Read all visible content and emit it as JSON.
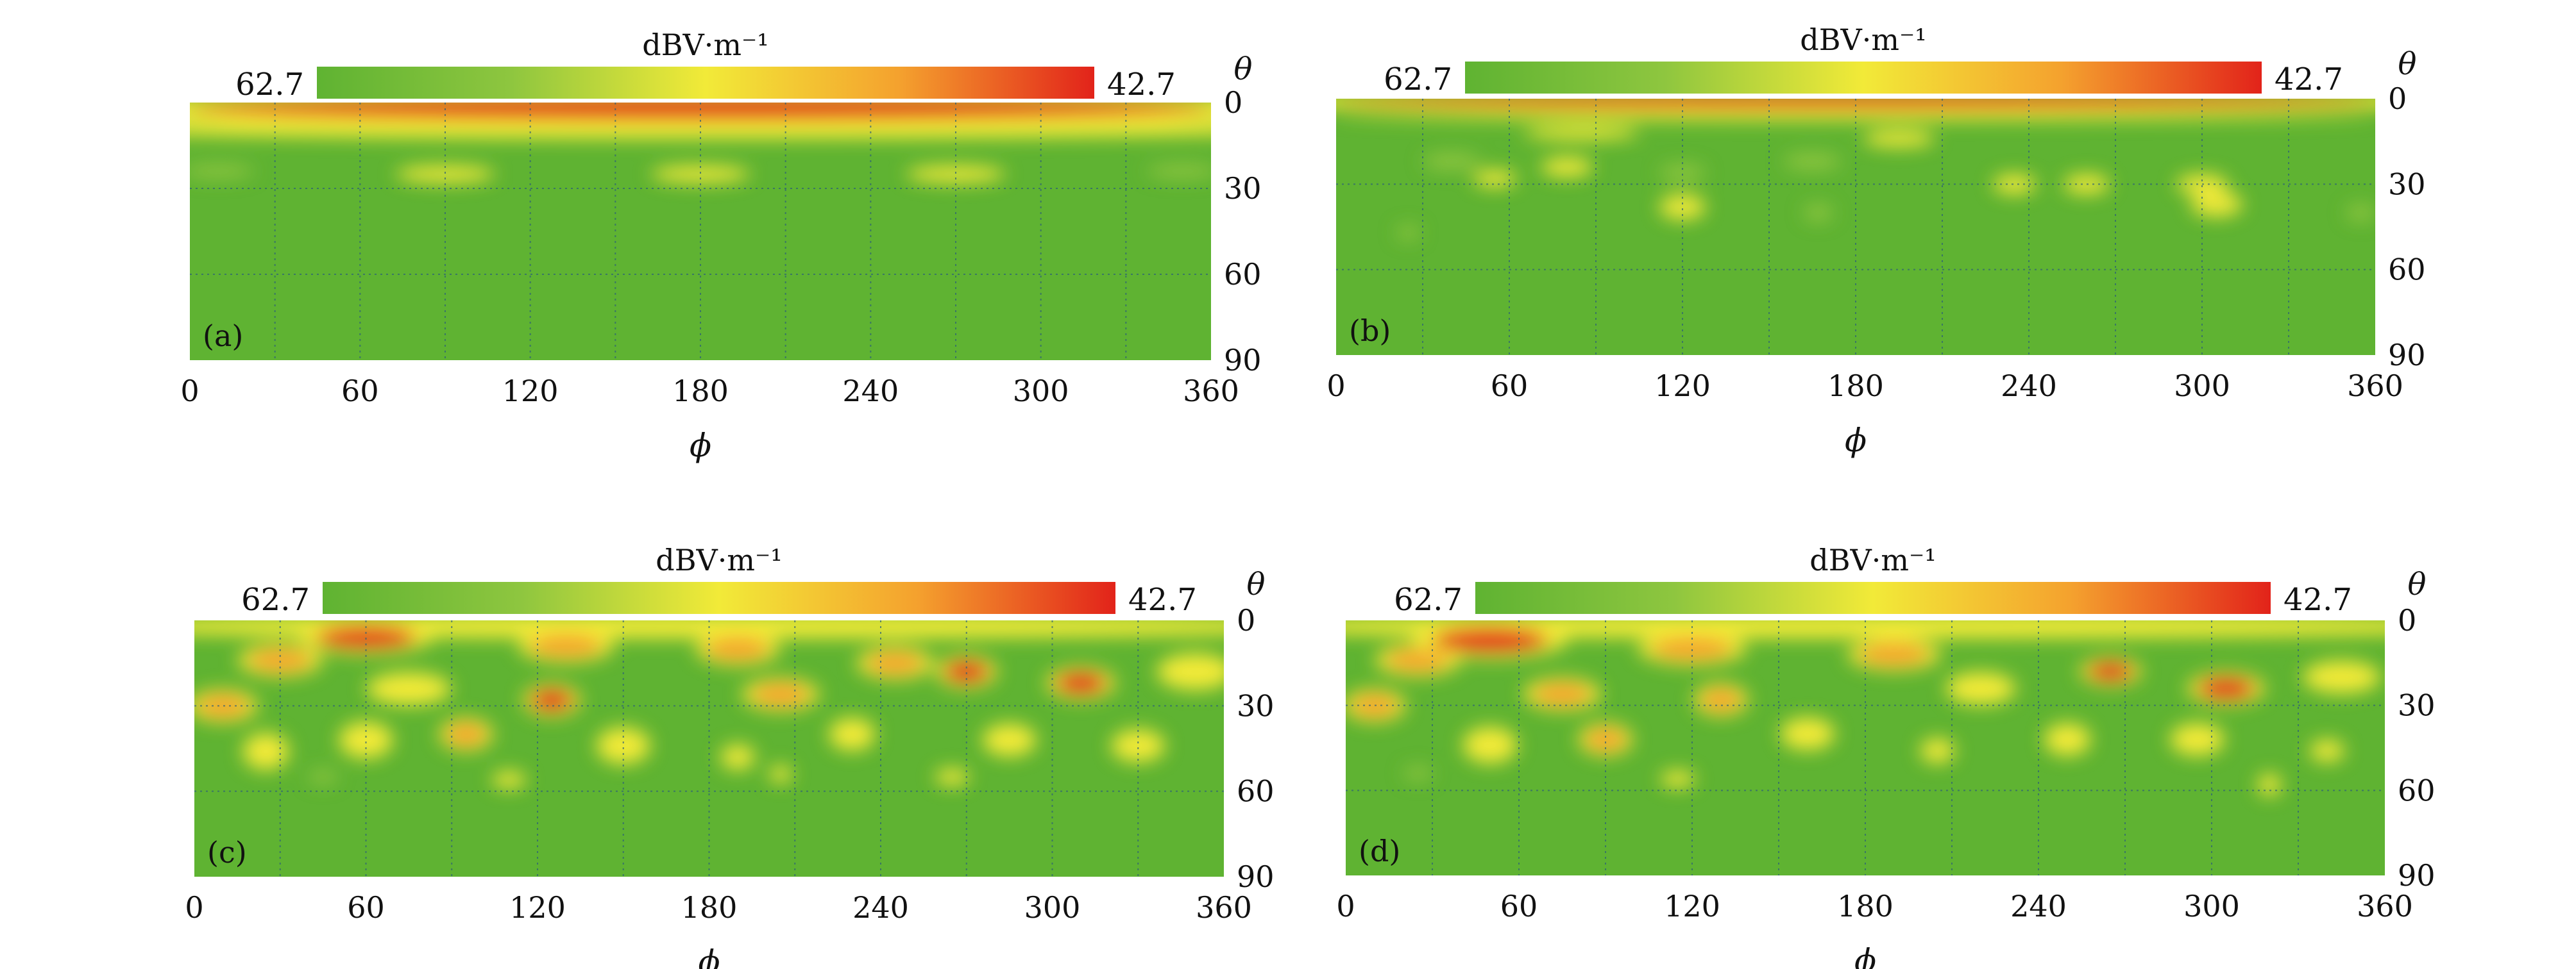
{
  "figure": {
    "panels": [
      {
        "id": "a",
        "panel_label": "(a)",
        "colorbar": {
          "unit": "dBV·m⁻¹",
          "left_value": "62.7",
          "right_value": "42.7"
        },
        "xlabel": "ϕ",
        "ylabel": "θ"
      },
      {
        "id": "b",
        "panel_label": "(b)",
        "colorbar": {
          "unit": "dBV·m⁻¹",
          "left_value": "62.7",
          "right_value": "42.7"
        },
        "xlabel": "ϕ",
        "ylabel": "θ"
      },
      {
        "id": "c",
        "panel_label": "(c)",
        "colorbar": {
          "unit": "dBV·m⁻¹",
          "left_value": "62.7",
          "right_value": "42.7"
        },
        "xlabel": "ϕ",
        "ylabel": "θ"
      },
      {
        "id": "d",
        "panel_label": "(d)",
        "colorbar": {
          "unit": "dBV·m⁻¹",
          "left_value": "62.7",
          "right_value": "42.7"
        },
        "xlabel": "ϕ",
        "ylabel": "θ"
      }
    ]
  },
  "chart_data": [
    {
      "type": "heatmap",
      "panel": "a",
      "x_ticks": [
        0,
        60,
        120,
        180,
        240,
        300,
        360
      ],
      "y_ticks": [
        0,
        30,
        60,
        90
      ],
      "xlim": [
        0,
        360
      ],
      "ylim": [
        0,
        90
      ],
      "y_inverted": true,
      "grid": "dotted",
      "colormap": [
        "#5fb332",
        "#8ec63f",
        "#f2ea38",
        "#f4a12e",
        "#e2231a"
      ],
      "value_range": [
        42.7,
        62.7
      ],
      "hotspots": [
        {
          "phi": 180,
          "theta": 2,
          "size_phi": 360,
          "size_theta": 8,
          "level": 1.0
        },
        {
          "phi": 180,
          "theta": 9,
          "size_phi": 360,
          "size_theta": 5,
          "level": 0.55
        },
        {
          "phi": 90,
          "theta": 25,
          "size_phi": 35,
          "size_theta": 6,
          "level": 0.42
        },
        {
          "phi": 180,
          "theta": 25,
          "size_phi": 35,
          "size_theta": 6,
          "level": 0.42
        },
        {
          "phi": 270,
          "theta": 25,
          "size_phi": 35,
          "size_theta": 6,
          "level": 0.42
        },
        {
          "phi": 10,
          "theta": 24,
          "size_phi": 25,
          "size_theta": 5,
          "level": 0.3
        },
        {
          "phi": 350,
          "theta": 24,
          "size_phi": 25,
          "size_theta": 5,
          "level": 0.3
        }
      ]
    },
    {
      "type": "heatmap",
      "panel": "b",
      "x_ticks": [
        0,
        60,
        120,
        180,
        240,
        300,
        360
      ],
      "y_ticks": [
        0,
        30,
        60,
        90
      ],
      "xlim": [
        0,
        360
      ],
      "ylim": [
        0,
        90
      ],
      "y_inverted": true,
      "grid": "dotted",
      "colormap": [
        "#5fb332",
        "#8ec63f",
        "#f2ea38",
        "#f4a12e",
        "#e2231a"
      ],
      "value_range": [
        42.7,
        62.7
      ],
      "hotspots": [
        {
          "phi": 180,
          "theta": 1,
          "size_phi": 360,
          "size_theta": 5,
          "level": 1.0
        },
        {
          "phi": 180,
          "theta": 6,
          "size_phi": 360,
          "size_theta": 3,
          "level": 0.5
        },
        {
          "phi": 85,
          "theta": 12,
          "size_phi": 40,
          "size_theta": 5,
          "level": 0.45
        },
        {
          "phi": 195,
          "theta": 14,
          "size_phi": 25,
          "size_theta": 6,
          "level": 0.45
        },
        {
          "phi": 40,
          "theta": 22,
          "size_phi": 20,
          "size_theta": 6,
          "level": 0.35
        },
        {
          "phi": 80,
          "theta": 24,
          "size_phi": 18,
          "size_theta": 7,
          "level": 0.45
        },
        {
          "phi": 120,
          "theta": 26,
          "size_phi": 16,
          "size_theta": 6,
          "level": 0.35
        },
        {
          "phi": 165,
          "theta": 22,
          "size_phi": 20,
          "size_theta": 6,
          "level": 0.3
        },
        {
          "phi": 55,
          "theta": 28,
          "size_phi": 15,
          "size_theta": 6,
          "level": 0.4
        },
        {
          "phi": 235,
          "theta": 30,
          "size_phi": 15,
          "size_theta": 7,
          "level": 0.4
        },
        {
          "phi": 260,
          "theta": 30,
          "size_phi": 16,
          "size_theta": 7,
          "level": 0.4
        },
        {
          "phi": 300,
          "theta": 30,
          "size_phi": 18,
          "size_theta": 7,
          "level": 0.4
        },
        {
          "phi": 120,
          "theta": 38,
          "size_phi": 16,
          "size_theta": 9,
          "level": 0.45
        },
        {
          "phi": 305,
          "theta": 37,
          "size_phi": 18,
          "size_theta": 9,
          "level": 0.45
        },
        {
          "phi": 167,
          "theta": 40,
          "size_phi": 10,
          "size_theta": 6,
          "level": 0.3
        },
        {
          "phi": 25,
          "theta": 47,
          "size_phi": 8,
          "size_theta": 5,
          "level": 0.25
        },
        {
          "phi": 355,
          "theta": 40,
          "size_phi": 10,
          "size_theta": 6,
          "level": 0.3
        }
      ]
    },
    {
      "type": "heatmap",
      "panel": "c",
      "x_ticks": [
        0,
        60,
        120,
        180,
        240,
        300,
        360
      ],
      "y_ticks": [
        0,
        30,
        60,
        90
      ],
      "xlim": [
        0,
        360
      ],
      "ylim": [
        0,
        90
      ],
      "y_inverted": true,
      "grid": "dotted",
      "colormap": [
        "#5fb332",
        "#8ec63f",
        "#f2ea38",
        "#f4a12e",
        "#e2231a"
      ],
      "value_range": [
        42.7,
        62.7
      ],
      "hotspots": [
        {
          "phi": 180,
          "theta": 2,
          "size_phi": 360,
          "size_theta": 6,
          "level": 0.55
        },
        {
          "phi": 60,
          "theta": 6,
          "size_phi": 35,
          "size_theta": 8,
          "level": 0.95
        },
        {
          "phi": 30,
          "theta": 14,
          "size_phi": 22,
          "size_theta": 8,
          "level": 0.85
        },
        {
          "phi": 130,
          "theta": 9,
          "size_phi": 25,
          "size_theta": 8,
          "level": 0.7
        },
        {
          "phi": 190,
          "theta": 10,
          "size_phi": 22,
          "size_theta": 8,
          "level": 0.8
        },
        {
          "phi": 245,
          "theta": 15,
          "size_phi": 20,
          "size_theta": 8,
          "level": 0.7
        },
        {
          "phi": 270,
          "theta": 18,
          "size_phi": 16,
          "size_theta": 8,
          "level": 0.95
        },
        {
          "phi": 310,
          "theta": 22,
          "size_phi": 18,
          "size_theta": 8,
          "level": 0.9
        },
        {
          "phi": 125,
          "theta": 28,
          "size_phi": 15,
          "size_theta": 8,
          "level": 0.9
        },
        {
          "phi": 75,
          "theta": 24,
          "size_phi": 22,
          "size_theta": 8,
          "level": 0.6
        },
        {
          "phi": 10,
          "theta": 30,
          "size_phi": 18,
          "size_theta": 8,
          "level": 0.7
        },
        {
          "phi": 205,
          "theta": 26,
          "size_phi": 20,
          "size_theta": 8,
          "level": 0.65
        },
        {
          "phi": 350,
          "theta": 18,
          "size_phi": 20,
          "size_theta": 9,
          "level": 0.55
        },
        {
          "phi": 95,
          "theta": 40,
          "size_phi": 14,
          "size_theta": 8,
          "level": 0.7
        },
        {
          "phi": 60,
          "theta": 42,
          "size_phi": 14,
          "size_theta": 9,
          "level": 0.55
        },
        {
          "phi": 25,
          "theta": 46,
          "size_phi": 12,
          "size_theta": 9,
          "level": 0.55
        },
        {
          "phi": 150,
          "theta": 44,
          "size_phi": 14,
          "size_theta": 9,
          "level": 0.55
        },
        {
          "phi": 190,
          "theta": 48,
          "size_phi": 12,
          "size_theta": 9,
          "level": 0.5
        },
        {
          "phi": 230,
          "theta": 40,
          "size_phi": 12,
          "size_theta": 8,
          "level": 0.55
        },
        {
          "phi": 285,
          "theta": 42,
          "size_phi": 14,
          "size_theta": 8,
          "level": 0.55
        },
        {
          "phi": 330,
          "theta": 44,
          "size_phi": 14,
          "size_theta": 8,
          "level": 0.6
        },
        {
          "phi": 205,
          "theta": 54,
          "size_phi": 8,
          "size_theta": 6,
          "level": 0.4
        },
        {
          "phi": 110,
          "theta": 56,
          "size_phi": 12,
          "size_theta": 6,
          "level": 0.4
        },
        {
          "phi": 265,
          "theta": 55,
          "size_phi": 12,
          "size_theta": 6,
          "level": 0.45
        },
        {
          "phi": 45,
          "theta": 55,
          "size_phi": 10,
          "size_theta": 5,
          "level": 0.35
        }
      ]
    },
    {
      "type": "heatmap",
      "panel": "d",
      "x_ticks": [
        0,
        60,
        120,
        180,
        240,
        300,
        360
      ],
      "y_ticks": [
        0,
        30,
        60,
        90
      ],
      "xlim": [
        0,
        360
      ],
      "ylim": [
        0,
        90
      ],
      "y_inverted": true,
      "grid": "dotted",
      "colormap": [
        "#5fb332",
        "#8ec63f",
        "#f2ea38",
        "#f4a12e",
        "#e2231a"
      ],
      "value_range": [
        42.7,
        62.7
      ],
      "hotspots": [
        {
          "phi": 180,
          "theta": 2,
          "size_phi": 360,
          "size_theta": 6,
          "level": 0.55
        },
        {
          "phi": 50,
          "theta": 7,
          "size_phi": 40,
          "size_theta": 9,
          "level": 0.95
        },
        {
          "phi": 25,
          "theta": 14,
          "size_phi": 22,
          "size_theta": 8,
          "level": 0.8
        },
        {
          "phi": 120,
          "theta": 10,
          "size_phi": 28,
          "size_theta": 8,
          "level": 0.65
        },
        {
          "phi": 190,
          "theta": 12,
          "size_phi": 24,
          "size_theta": 8,
          "level": 0.7
        },
        {
          "phi": 265,
          "theta": 18,
          "size_phi": 16,
          "size_theta": 7,
          "level": 0.95
        },
        {
          "phi": 305,
          "theta": 24,
          "size_phi": 20,
          "size_theta": 8,
          "level": 0.9
        },
        {
          "phi": 130,
          "theta": 28,
          "size_phi": 14,
          "size_theta": 8,
          "level": 0.85
        },
        {
          "phi": 75,
          "theta": 26,
          "size_phi": 20,
          "size_theta": 8,
          "level": 0.65
        },
        {
          "phi": 10,
          "theta": 30,
          "size_phi": 16,
          "size_theta": 8,
          "level": 0.65
        },
        {
          "phi": 220,
          "theta": 24,
          "size_phi": 18,
          "size_theta": 8,
          "level": 0.6
        },
        {
          "phi": 345,
          "theta": 20,
          "size_phi": 20,
          "size_theta": 8,
          "level": 0.55
        },
        {
          "phi": 90,
          "theta": 42,
          "size_phi": 14,
          "size_theta": 8,
          "level": 0.65
        },
        {
          "phi": 50,
          "theta": 44,
          "size_phi": 14,
          "size_theta": 9,
          "level": 0.55
        },
        {
          "phi": 160,
          "theta": 40,
          "size_phi": 14,
          "size_theta": 8,
          "level": 0.55
        },
        {
          "phi": 205,
          "theta": 46,
          "size_phi": 12,
          "size_theta": 9,
          "level": 0.5
        },
        {
          "phi": 250,
          "theta": 42,
          "size_phi": 12,
          "size_theta": 8,
          "level": 0.55
        },
        {
          "phi": 295,
          "theta": 42,
          "size_phi": 14,
          "size_theta": 8,
          "level": 0.55
        },
        {
          "phi": 340,
          "theta": 46,
          "size_phi": 12,
          "size_theta": 8,
          "level": 0.5
        },
        {
          "phi": 320,
          "theta": 58,
          "size_phi": 8,
          "size_theta": 8,
          "level": 0.4
        },
        {
          "phi": 115,
          "theta": 56,
          "size_phi": 12,
          "size_theta": 6,
          "level": 0.4
        },
        {
          "phi": 25,
          "theta": 54,
          "size_phi": 10,
          "size_theta": 5,
          "level": 0.35
        }
      ]
    }
  ]
}
